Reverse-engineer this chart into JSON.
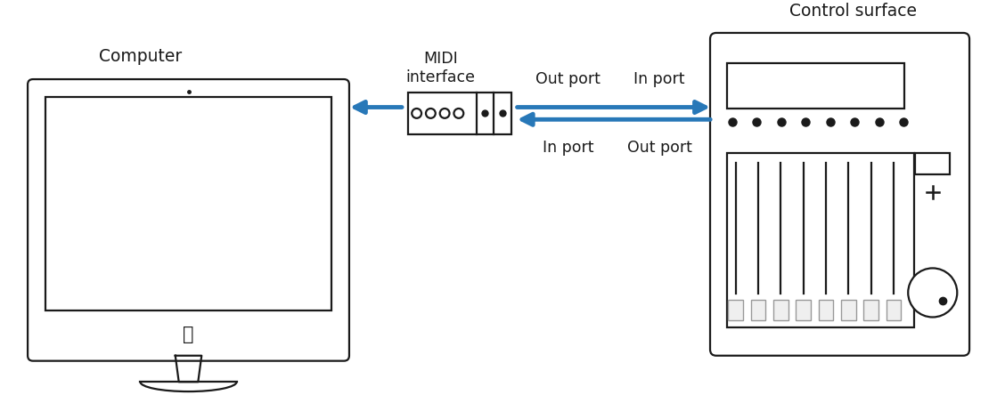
{
  "bg_color": "#ffffff",
  "line_color": "#1a1a1a",
  "arrow_color": "#2878b8",
  "computer_label": "Computer",
  "control_label": "Control surface",
  "midi_label": "MIDI\ninterface",
  "out_port_top": "Out port",
  "in_port_top": "In port",
  "in_port_bot": "In port",
  "out_port_bot": "Out port",
  "label_fontsize": 13.5,
  "small_fontsize": 12.5,
  "lw": 1.6
}
